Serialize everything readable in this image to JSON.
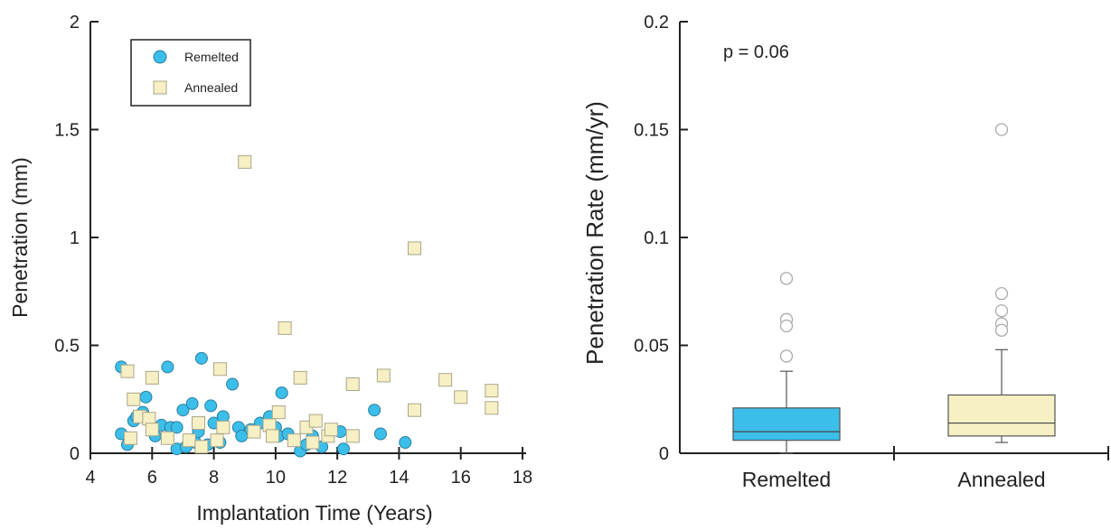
{
  "chart_data": [
    {
      "type": "scatter",
      "xlabel": "Implantation Time (Years)",
      "ylabel": "Penetration (mm)",
      "xlim": [
        4,
        18
      ],
      "ylim": [
        0,
        2
      ],
      "xticks": [
        "4",
        "6",
        "8",
        "10",
        "12",
        "14",
        "16",
        "18"
      ],
      "yticks": [
        "0",
        "0.5",
        "1",
        "1.5",
        "2"
      ],
      "legend_position": "top-left",
      "series": [
        {
          "name": "Remelted",
          "marker": "circle",
          "color": "#3BBFEA",
          "points": [
            [
              5.0,
              0.4
            ],
            [
              5.0,
              0.09
            ],
            [
              5.2,
              0.04
            ],
            [
              5.4,
              0.15
            ],
            [
              5.5,
              0.17
            ],
            [
              5.7,
              0.19
            ],
            [
              5.8,
              0.26
            ],
            [
              6.0,
              0.12
            ],
            [
              6.1,
              0.08
            ],
            [
              6.3,
              0.13
            ],
            [
              6.5,
              0.4
            ],
            [
              6.6,
              0.12
            ],
            [
              6.8,
              0.12
            ],
            [
              6.8,
              0.02
            ],
            [
              7.0,
              0.2
            ],
            [
              7.1,
              0.03
            ],
            [
              7.3,
              0.23
            ],
            [
              7.4,
              0.05
            ],
            [
              7.5,
              0.1
            ],
            [
              7.6,
              0.44
            ],
            [
              7.8,
              0.04
            ],
            [
              7.9,
              0.22
            ],
            [
              8.0,
              0.14
            ],
            [
              8.2,
              0.05
            ],
            [
              8.3,
              0.17
            ],
            [
              8.6,
              0.32
            ],
            [
              8.8,
              0.12
            ],
            [
              8.9,
              0.08
            ],
            [
              9.2,
              0.11
            ],
            [
              9.5,
              0.14
            ],
            [
              9.8,
              0.17
            ],
            [
              10.0,
              0.12
            ],
            [
              10.1,
              0.08
            ],
            [
              10.2,
              0.28
            ],
            [
              10.4,
              0.09
            ],
            [
              10.6,
              0.06
            ],
            [
              10.8,
              0.01
            ],
            [
              11.0,
              0.04
            ],
            [
              11.2,
              0.08
            ],
            [
              11.5,
              0.03
            ],
            [
              12.1,
              0.1
            ],
            [
              12.2,
              0.02
            ],
            [
              13.2,
              0.2
            ],
            [
              13.4,
              0.09
            ],
            [
              14.2,
              0.05
            ]
          ]
        },
        {
          "name": "Annealed",
          "marker": "square",
          "color": "#F6F0C4",
          "points": [
            [
              5.2,
              0.38
            ],
            [
              5.3,
              0.07
            ],
            [
              5.4,
              0.25
            ],
            [
              5.6,
              0.17
            ],
            [
              5.9,
              0.16
            ],
            [
              6.0,
              0.35
            ],
            [
              6.0,
              0.11
            ],
            [
              6.5,
              0.07
            ],
            [
              7.2,
              0.06
            ],
            [
              7.5,
              0.14
            ],
            [
              7.6,
              0.03
            ],
            [
              8.1,
              0.06
            ],
            [
              8.2,
              0.39
            ],
            [
              8.3,
              0.12
            ],
            [
              9.0,
              1.35
            ],
            [
              9.3,
              0.1
            ],
            [
              9.8,
              0.13
            ],
            [
              9.9,
              0.08
            ],
            [
              10.1,
              0.19
            ],
            [
              10.3,
              0.58
            ],
            [
              10.6,
              0.06
            ],
            [
              10.8,
              0.35
            ],
            [
              11.0,
              0.12
            ],
            [
              11.2,
              0.05
            ],
            [
              11.3,
              0.15
            ],
            [
              11.7,
              0.08
            ],
            [
              11.8,
              0.11
            ],
            [
              12.5,
              0.32
            ],
            [
              12.5,
              0.08
            ],
            [
              13.5,
              0.36
            ],
            [
              14.5,
              0.95
            ],
            [
              14.5,
              0.2
            ],
            [
              15.5,
              0.34
            ],
            [
              16.0,
              0.26
            ],
            [
              17.0,
              0.29
            ],
            [
              17.0,
              0.21
            ]
          ]
        }
      ]
    },
    {
      "type": "box",
      "ylabel": "Penetration Rate (mm/yr)",
      "ylim": [
        0,
        0.2
      ],
      "yticks": [
        "0",
        "0.05",
        "0.1",
        "0.15",
        "0.2"
      ],
      "annotation": "p = 0.06",
      "categories": [
        "Remelted",
        "Annealed"
      ],
      "boxes": [
        {
          "name": "Remelted",
          "color": "#3BBFEA",
          "whisker_low": 0.0,
          "q1": 0.006,
          "median": 0.01,
          "q3": 0.021,
          "whisker_high": 0.038,
          "outliers": [
            0.081,
            0.062,
            0.059,
            0.045
          ]
        },
        {
          "name": "Annealed",
          "color": "#F6F0C4",
          "whisker_low": 0.005,
          "q1": 0.008,
          "median": 0.014,
          "q3": 0.027,
          "whisker_high": 0.048,
          "outliers": [
            0.15,
            0.074,
            0.066,
            0.06,
            0.057
          ]
        }
      ]
    }
  ]
}
